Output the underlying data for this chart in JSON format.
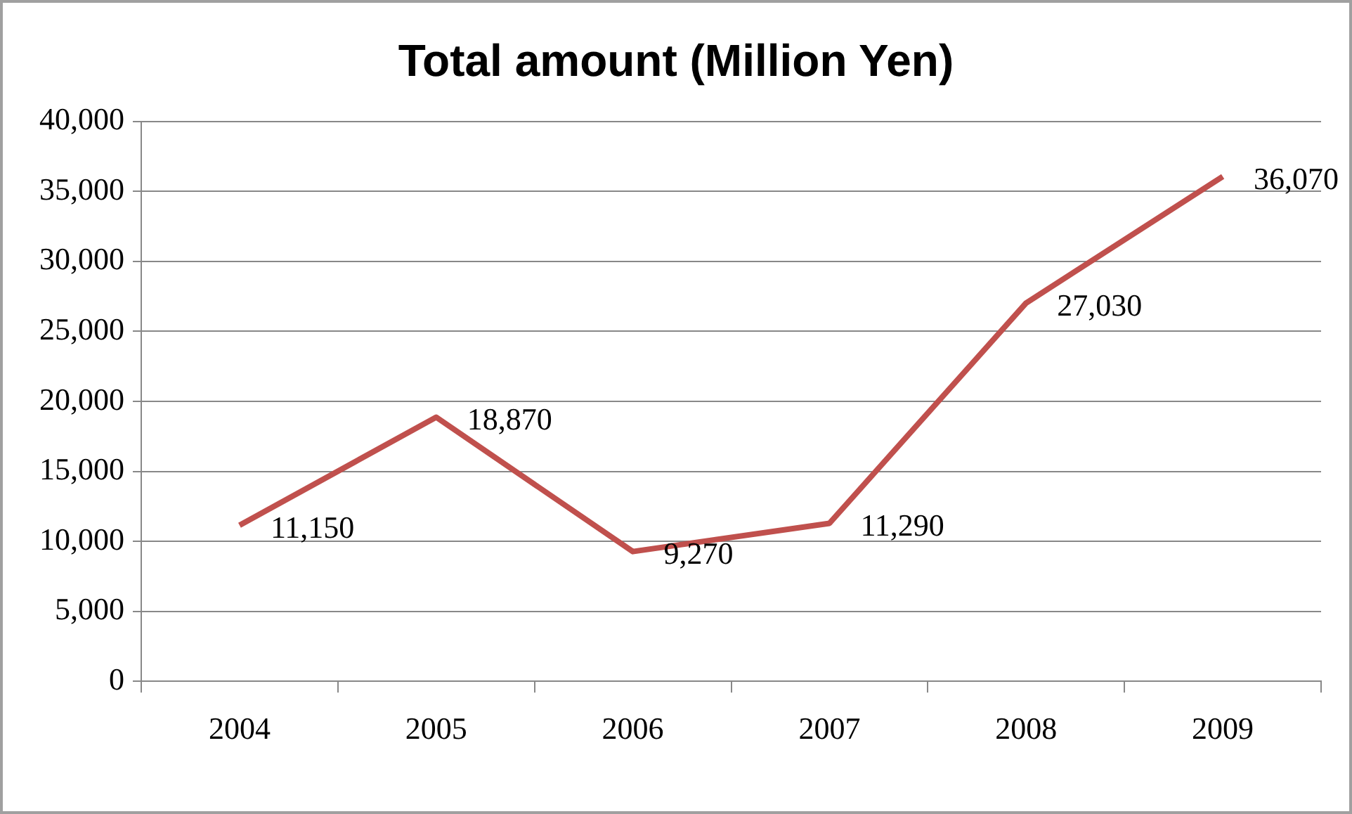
{
  "chart_data": {
    "type": "line",
    "title": "Total amount (Million Yen)",
    "categories": [
      "2004",
      "2005",
      "2006",
      "2007",
      "2008",
      "2009"
    ],
    "series": [
      {
        "color": "#c0504d",
        "values": [
          11150,
          18870,
          9270,
          11290,
          27030,
          36070
        ],
        "value_labels": [
          "11,150",
          "18,870",
          "9,270",
          "11,290",
          "27,030",
          "36,070"
        ]
      }
    ],
    "ylim": [
      0,
      40000
    ],
    "yticks": [
      {
        "value": 0,
        "label": "0"
      },
      {
        "value": 5000,
        "label": "5,000"
      },
      {
        "value": 10000,
        "label": "10,000"
      },
      {
        "value": 15000,
        "label": "15,000"
      },
      {
        "value": 20000,
        "label": "20,000"
      },
      {
        "value": 25000,
        "label": "25,000"
      },
      {
        "value": 30000,
        "label": "30,000"
      },
      {
        "value": 35000,
        "label": "35,000"
      },
      {
        "value": 40000,
        "label": "40,000"
      }
    ],
    "grid": "y",
    "legend": false,
    "marker": "none",
    "line_style": "solid"
  }
}
